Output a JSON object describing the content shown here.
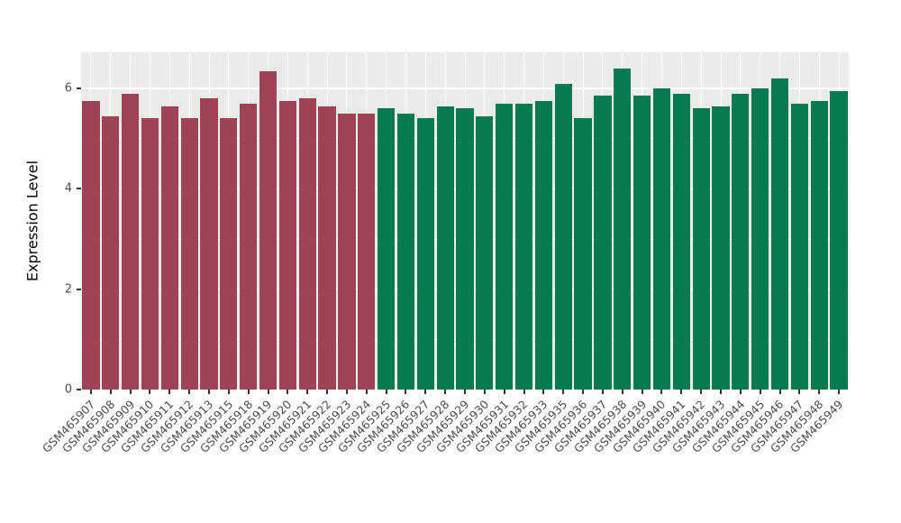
{
  "chart_data": {
    "type": "bar",
    "title": "",
    "xlabel": "",
    "ylabel": "Expression Level",
    "ylim": [
      0,
      6.72
    ],
    "yticks": [
      0,
      2,
      4,
      6
    ],
    "yminor": [
      1,
      3,
      5
    ],
    "categories": [
      "GSM465907",
      "GSM465908",
      "GSM465909",
      "GSM465910",
      "GSM465911",
      "GSM465912",
      "GSM465913",
      "GSM465915",
      "GSM465918",
      "GSM465919",
      "GSM465920",
      "GSM465921",
      "GSM465922",
      "GSM465923",
      "GSM465924",
      "GSM465925",
      "GSM465926",
      "GSM465927",
      "GSM465928",
      "GSM465929",
      "GSM465930",
      "GSM465931",
      "GSM465932",
      "GSM465933",
      "GSM465935",
      "GSM465936",
      "GSM465937",
      "GSM465938",
      "GSM465939",
      "GSM465940",
      "GSM465941",
      "GSM465942",
      "GSM465943",
      "GSM465944",
      "GSM465945",
      "GSM465946",
      "GSM465947",
      "GSM465948",
      "GSM465949"
    ],
    "values": [
      5.75,
      5.45,
      5.9,
      5.4,
      5.65,
      5.4,
      5.8,
      5.4,
      5.7,
      6.35,
      5.75,
      5.8,
      5.65,
      5.5,
      5.5,
      5.6,
      5.5,
      5.4,
      5.65,
      5.6,
      5.45,
      5.7,
      5.7,
      5.75,
      6.1,
      5.4,
      5.85,
      6.4,
      5.85,
      6.0,
      5.9,
      5.6,
      5.65,
      5.9,
      6.0,
      6.2,
      5.7,
      5.75,
      5.95
    ],
    "split_index": 15,
    "colors": {
      "group1": "#9e4356",
      "group2": "#077a52"
    },
    "panel_bg": "#ebebeb",
    "grid_color": "#ffffff",
    "axis_text_color": "#4d4d4d",
    "legend_position": "none",
    "grid": "on"
  }
}
